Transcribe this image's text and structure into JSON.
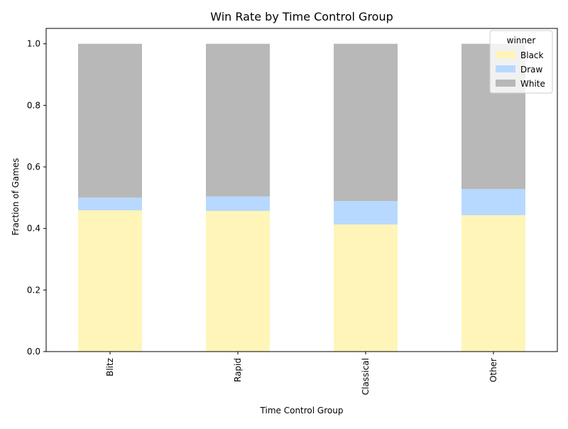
{
  "chart_data": {
    "type": "bar",
    "stacked": true,
    "title": "Win Rate by Time Control Group",
    "xlabel": "Time Control Group",
    "ylabel": "Fraction of Games",
    "categories": [
      "Blitz",
      "Rapid",
      "Classical",
      "Other"
    ],
    "series": [
      {
        "name": "Black",
        "color": "#fff5b8",
        "values": [
          0.459,
          0.457,
          0.413,
          0.443
        ]
      },
      {
        "name": "Draw",
        "color": "#b8d9ff",
        "values": [
          0.041,
          0.047,
          0.076,
          0.085
        ]
      },
      {
        "name": "White",
        "color": "#b8b8b8",
        "values": [
          0.5,
          0.496,
          0.511,
          0.472
        ]
      }
    ],
    "ylim": [
      0,
      1.05
    ],
    "yticks": [
      "0.0",
      "0.2",
      "0.4",
      "0.6",
      "0.8",
      "1.0"
    ],
    "legend": {
      "title": "winner",
      "placement": "top-right"
    },
    "grid": false
  }
}
